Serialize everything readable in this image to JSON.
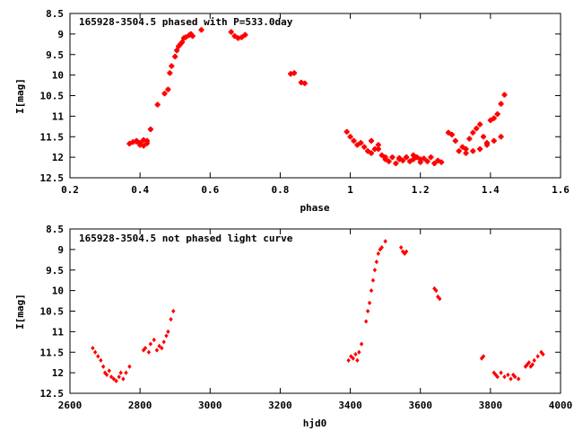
{
  "chart_data": [
    {
      "type": "scatter",
      "title": "165928-3504.5 phased with P=533.0day",
      "xlabel": "phase",
      "ylabel": "I[mag]",
      "xlim": [
        0.2,
        1.6
      ],
      "ylim": [
        12.5,
        8.5
      ],
      "y_inverted": true,
      "xticks": [
        0.2,
        0.4,
        0.6,
        0.8,
        1,
        1.2,
        1.4,
        1.6
      ],
      "xtick_labels": [
        "0.2",
        "0.4",
        "0.6",
        "0.8",
        "1",
        "1.2",
        "1.4",
        "1.6"
      ],
      "yticks": [
        8.5,
        9,
        9.5,
        10,
        10.5,
        11,
        11.5,
        12,
        12.5
      ],
      "ytick_labels": [
        "8.5",
        "9",
        "9.5",
        "10",
        "10.5",
        "11",
        "11.5",
        "12",
        "12.5"
      ],
      "marker": "plus",
      "color": "#ff0000",
      "grid": false,
      "x": [
        0.37,
        0.38,
        0.39,
        0.39,
        0.4,
        0.4,
        0.41,
        0.41,
        0.42,
        0.42,
        0.43,
        0.45,
        0.47,
        0.48,
        0.485,
        0.49,
        0.5,
        0.505,
        0.51,
        0.515,
        0.52,
        0.525,
        0.53,
        0.54,
        0.545,
        0.55,
        0.575,
        0.66,
        0.67,
        0.68,
        0.69,
        0.7,
        0.83,
        0.84,
        0.86,
        0.87,
        0.99,
        1.0,
        1.01,
        1.02,
        1.03,
        1.04,
        1.05,
        1.06,
        1.07,
        1.08,
        1.09,
        1.1,
        1.11,
        1.12,
        1.13,
        1.14,
        1.15,
        1.16,
        1.17,
        1.18,
        1.19,
        1.2,
        1.21,
        1.22,
        1.23,
        1.24,
        1.25,
        1.26,
        1.28,
        1.29,
        1.3,
        1.31,
        1.32,
        1.33,
        1.34,
        1.35,
        1.36,
        1.37,
        1.38,
        1.39,
        1.4,
        1.41,
        1.42,
        1.43,
        1.44,
        1.33,
        1.35,
        1.37,
        1.39,
        1.41,
        1.43,
        1.06,
        1.08,
        1.1,
        1.14,
        1.16,
        1.18,
        1.2
      ],
      "y": [
        11.67,
        11.63,
        11.62,
        11.6,
        11.7,
        11.65,
        11.58,
        11.72,
        11.66,
        11.6,
        11.32,
        10.72,
        10.45,
        10.35,
        9.95,
        9.78,
        9.55,
        9.4,
        9.3,
        9.25,
        9.2,
        9.1,
        9.08,
        9.03,
        9.0,
        9.05,
        8.9,
        8.95,
        9.05,
        9.1,
        9.08,
        9.02,
        9.97,
        9.95,
        10.18,
        10.2,
        11.38,
        11.5,
        11.6,
        11.7,
        11.65,
        11.75,
        11.85,
        11.9,
        11.8,
        11.7,
        11.95,
        12.05,
        12.1,
        12.0,
        12.15,
        12.02,
        12.08,
        12.0,
        12.1,
        12.05,
        12.0,
        12.12,
        12.03,
        12.1,
        12.0,
        12.15,
        12.08,
        12.12,
        11.4,
        11.45,
        11.6,
        11.85,
        11.75,
        11.8,
        11.55,
        11.4,
        11.3,
        11.2,
        11.5,
        11.65,
        11.1,
        11.05,
        10.95,
        10.7,
        10.48,
        11.9,
        11.85,
        11.8,
        11.7,
        11.6,
        11.5,
        11.6,
        11.8,
        12.0,
        12.05,
        12.0,
        11.95,
        12.05
      ]
    },
    {
      "type": "scatter",
      "title": "165928-3504.5 not phased light curve",
      "xlabel": "hjd0",
      "ylabel": "I[mag]",
      "xlim": [
        2600,
        4000
      ],
      "ylim": [
        12.5,
        8.5
      ],
      "y_inverted": true,
      "xticks": [
        2600,
        2800,
        3000,
        3200,
        3400,
        3600,
        3800,
        4000
      ],
      "xtick_labels": [
        "2600",
        "2800",
        "3000",
        "3200",
        "3400",
        "3600",
        "3800",
        "4000"
      ],
      "yticks": [
        8.5,
        9,
        9.5,
        10,
        10.5,
        11,
        11.5,
        12,
        12.5
      ],
      "ytick_labels": [
        "8.5",
        "9",
        "9.5",
        "10",
        "10.5",
        "11",
        "11.5",
        "12",
        "12.5"
      ],
      "marker": "diamond",
      "color": "#ff0000",
      "grid": false,
      "x": [
        2665,
        2672,
        2680,
        2688,
        2695,
        2700,
        2705,
        2712,
        2718,
        2725,
        2732,
        2740,
        2745,
        2752,
        2760,
        2770,
        2810,
        2815,
        2825,
        2830,
        2840,
        2848,
        2855,
        2862,
        2868,
        2875,
        2880,
        2888,
        2895,
        3395,
        3402,
        3408,
        3415,
        3420,
        3425,
        3432,
        3445,
        3450,
        3455,
        3460,
        3465,
        3470,
        3475,
        3480,
        3485,
        3490,
        3500,
        3545,
        3550,
        3555,
        3560,
        3640,
        3645,
        3650,
        3655,
        3775,
        3780,
        3810,
        3815,
        3820,
        3830,
        3840,
        3850,
        3858,
        3865,
        3870,
        3880,
        3900,
        3905,
        3910,
        3915,
        3920,
        3925,
        3935,
        3945,
        3950
      ],
      "y": [
        11.4,
        11.5,
        11.6,
        11.7,
        11.85,
        12.0,
        12.05,
        11.95,
        12.1,
        12.15,
        12.2,
        12.1,
        12.0,
        12.15,
        12.0,
        11.85,
        11.45,
        11.4,
        11.5,
        11.3,
        11.2,
        11.45,
        11.35,
        11.4,
        11.25,
        11.1,
        11.0,
        10.7,
        10.5,
        11.7,
        11.6,
        11.65,
        11.55,
        11.7,
        11.5,
        11.3,
        10.75,
        10.5,
        10.3,
        10.0,
        9.75,
        9.5,
        9.3,
        9.1,
        9.0,
        8.95,
        8.8,
        8.95,
        9.05,
        9.1,
        9.05,
        9.95,
        10.0,
        10.15,
        10.2,
        11.65,
        11.6,
        12.0,
        12.05,
        12.1,
        12.0,
        12.1,
        12.05,
        12.15,
        12.05,
        12.1,
        12.15,
        11.85,
        11.8,
        11.75,
        11.85,
        11.8,
        11.7,
        11.6,
        11.5,
        11.55
      ]
    }
  ]
}
